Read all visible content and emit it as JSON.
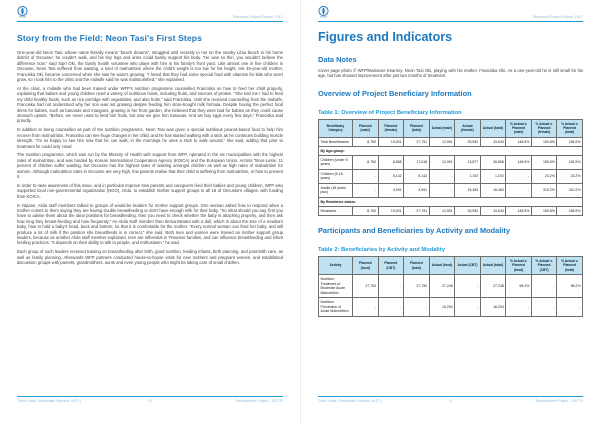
{
  "doc": {
    "header_right": "Standard Project Report 2017",
    "accent_blue": "#1e78be",
    "rule_blue": "#1e9ad6",
    "table_header_bg": "#bfe3f1"
  },
  "left_page": {
    "title": "Story from the Field: Neon Tasi's First Steps",
    "paragraphs": [
      "One-year-old Neon Tasi, whose name literally means “beach dreams”, struggled until recently to run on the nearby Lifau beach in his home district of Oecusse; he couldn't walk, and his tiny legs and arms could barely support his body. “He was so thin, you wouldn't believe the difference now,” said Sipri Oki, the family health volunteer who plays with him in his family's front yard. Like almost one in five children in Oecusse, Neon Tasi suffered from wasting, a kind of malnutrition where the child's weight is too low for his height. His 45-year-old mother, Franciska Oki, became concerned when she saw he wasn't growing. “I heard that they had some special food with vitamins for kids who won't grow, so I took him to the clinic and the midwife said he was malnourished,” she explained.",
      "At the clinic, a midwife who had been trained under WFP's nutrition programme counselled Franciska on how to feed her child properly, explaining that babies and young children need a variety of nutritious foods, including fruits, and sources of protein. “She told me I had to feed my child healthy foods, such as rice porridge with vegetables, and also fruits,” said Franciska. Until she received counselling from the midwife, Franciska had not understood why her son was not growing despite feeding him store-bought milk formula. Despite having the perfect food items for babies, such as bananas and mangoes, growing in her front garden, she believed that they were bad for babies as they could cause stomach upsets. “Before, we never used to feed him fruits, but now we give him bananas. And we buy eggs every few days,” Franciska said proudly.",
      "In addition to being counselled as part of the nutrition programme, Neon Tasi was given a special nutritious peanut-based food to help him recover from malnutrition. Franciska can see huge changes in her child, and he has started walking with a stick as he continues building muscle strength. “I'm so happy to see him now that he can walk; in the mornings he uses a stick to walk around,” she said, adding that prior to treatment he could only crawl.",
      "The nutrition programme, which was run by the Ministry of Health with support from WFP, operated in the six municipalities with the highest rates of malnutrition, and was funded by Korean International Cooperation Agency (KOICA) and the European Union. Across Timor-Leste, 11 percent of children suffer wasting, but Oecusse has the highest rates of wasting amongst children as well as high rates of malnutrition for women. Although malnutrition rates in Oecusse are very high, few parents realise that their child is suffering from malnutrition, or how to prevent it.",
      "In order to raise awareness of this issue, and in particular improve how parents and caregivers feed their babies and young children, WFP also supported local non-governmental organization (NGO), Alola, to establish mother support groups in all 18 of Oecusse's villages, with funding from KOICA.",
      "In Nipane, Alola staff members talked to groups of would-be leaders for mother support groups. One woman asked how to respond when a mother comes to them saying they are having trouble breastfeeding or don't have enough milk for their baby. “So what should you say, first you have to advise them about the ideal positions for breastfeeding, then you need to check whether the baby is attaching properly, and then ask how long they breast-feeding and how frequently.” An Alola staff member then demonstrated with a doll, which is about the size of a newborn baby, how to hold a baby's head, back and bottom, so that it is comfortable for the mother. “Every normal woman can feed her baby, and will produce a lot of milk if the position she breastfeeds in is correct,” she said. Both men and women were trained as mother support group leaders, because as another Alola staff member explained, men are influential in Timorese families, and can influence breastfeeding and infant feeding practices. “It depends on their ability to talk to people, and enthusiasm,” he said.",
      "Each group of such leaders received training on breastfeeding after birth, good nutrition, feeding infants, birth planning, and post-birth care, as well as family planning. Afterwards WFP partners conducted house-to-house visits for new mothers and pregnant women, and established discussion groups with parents, grandmothers, aunts and even young people who might be taking care of small children."
    ],
    "footer": {
      "left": "Timor-Leste, Democratic Republic of (TL)",
      "page": "10",
      "right": "Development Project - 200770"
    }
  },
  "right_page": {
    "title": "Figures and Indicators",
    "data_notes_heading": "Data Notes",
    "data_notes_text": "Cover page photo © WFP/Marianne Kearney. Neon Tasi Oki, playing with his mother, Franciska Oki. As a one-year-old he is still small for his age, but has showed improvement after just two months of treatment.",
    "overview_heading": "Overview of Project Beneficiary Information",
    "participants_heading": "Participants and Beneficiaries by Activity and Modality",
    "table1": {
      "title": "Table 1: Overview of Project Beneficiary Information",
      "columns": [
        "Beneficiary Category",
        "Planned (male)",
        "Planned (female)",
        "Planned (total)",
        "Actual (male)",
        "Actual (female)",
        "Actual (total)",
        "% Actual v. Planned (male)",
        "% Actual v. Planned (female)",
        "% Actual v. Planned (total)"
      ],
      "rows": [
        {
          "type": "data",
          "cells": [
            "Total Beneficiaries",
            "8,750",
            "19,001",
            "27,751",
            "12,991",
            "30,552",
            "43,543",
            "148.5%",
            "160.8%",
            "156.9%"
          ]
        },
        {
          "type": "band",
          "label": "By Age-group:"
        },
        {
          "type": "data",
          "cells": [
            "Children (under 5 years)",
            "8,750",
            "8,868",
            "17,618",
            "12,991",
            "13,877",
            "26,868",
            "148.5%",
            "156.5%",
            "152.5%"
          ]
        },
        {
          "type": "data",
          "cells": [
            "Children (5-18 years)",
            "-",
            "5,142",
            "5,142",
            "-",
            "1,192",
            "1,192",
            "-",
            "23.2%",
            "23.2%"
          ]
        },
        {
          "type": "data",
          "cells": [
            "Adults (18 years plus)",
            "-",
            "4,991",
            "4,991",
            "-",
            "15,483",
            "15,483",
            "-",
            "310.2%",
            "310.2%"
          ]
        },
        {
          "type": "band",
          "label": "By Residence status:"
        },
        {
          "type": "data",
          "cells": [
            "Residents",
            "8,750",
            "19,001",
            "27,751",
            "12,991",
            "30,552",
            "43,543",
            "148.5%",
            "160.8%",
            "156.9%"
          ]
        }
      ]
    },
    "table2": {
      "title": "Table 2: Beneficiaries by Activity and Modality",
      "columns": [
        "Activity",
        "Planned (food)",
        "Planned (CBT)",
        "Planned (total)",
        "Actual (food)",
        "Actual (CBT)",
        "Actual (total)",
        "% Actual v. Planned (food)",
        "% Actual v. Planned (CBT)",
        "% Actual v. Planned (total)"
      ],
      "rows": [
        {
          "type": "data",
          "cells": [
            "Nutrition: Treatment of Moderate Acute Malnutrition",
            "27,750",
            "-",
            "27,750",
            "27,248",
            "-",
            "27,248",
            "98.2%",
            "-",
            "98.2%"
          ]
        },
        {
          "type": "data",
          "cells": [
            "Nutrition: Prevention of Acute Malnutrition",
            "-",
            "-",
            "-",
            "16,294",
            "-",
            "16,294",
            "-",
            "-",
            "-"
          ]
        }
      ]
    },
    "footer": {
      "left": "Timor-Leste, Democratic Republic of (TL)",
      "page": "11",
      "right": "Development Project - 200770"
    }
  }
}
